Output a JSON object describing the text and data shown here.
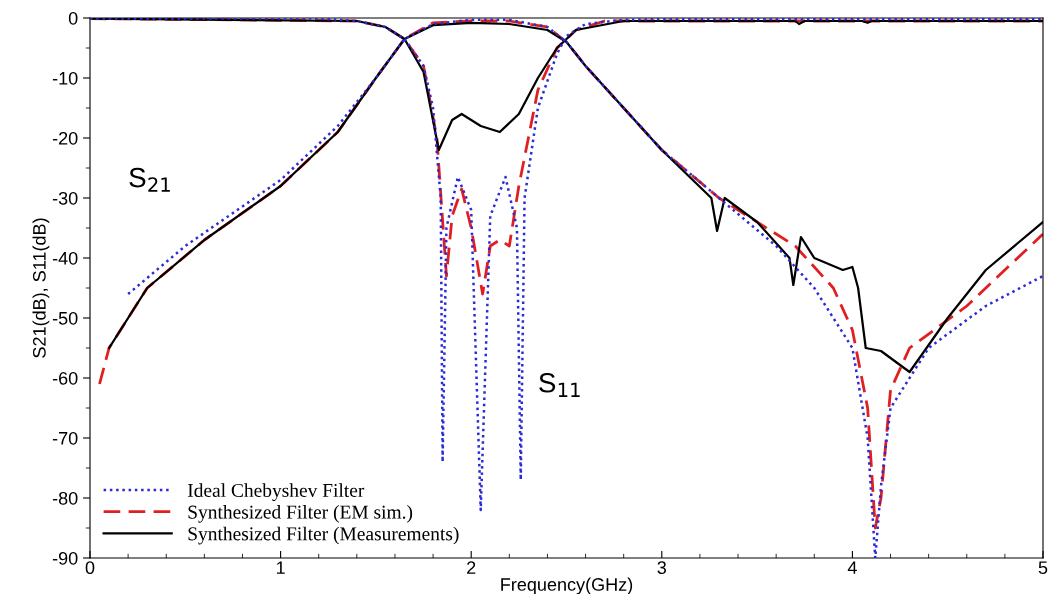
{
  "chart_data": {
    "type": "line",
    "xlabel": "Frequency(GHz)",
    "ylabel": "S21(dB), S11(dB)",
    "xlim": [
      0,
      5
    ],
    "ylim": [
      -90,
      0
    ],
    "xticks": [
      0,
      1,
      2,
      3,
      4,
      5
    ],
    "yticks": [
      -90,
      -80,
      -70,
      -60,
      -50,
      -40,
      -30,
      -20,
      -10,
      0
    ],
    "grid": false,
    "legend": "bottom left",
    "marker": "none",
    "series": [
      {
        "name": "Ideal Chebyshev Filter",
        "color": "#2b2bd6",
        "line_style": "dotted",
        "x": [
          0.2,
          0.5,
          1.0,
          1.3,
          1.5,
          1.65,
          1.8,
          2.0,
          2.2,
          2.4,
          2.5,
          2.6,
          2.8,
          3.0,
          3.3,
          3.6,
          3.8,
          4.0,
          4.08,
          4.12,
          4.15,
          4.2,
          4.4,
          4.7,
          5.0
        ],
        "values": [
          -46,
          -38,
          -27,
          -18,
          -10,
          -3.5,
          -1,
          -0.3,
          -0.3,
          -1.5,
          -4,
          -8,
          -15,
          -22,
          -30,
          -38,
          -45,
          -55,
          -70,
          -90,
          -78,
          -65,
          -55,
          -48,
          -43
        ]
      },
      {
        "name": "Synthesized Filter (EM sim.)",
        "color": "#e02020",
        "line_style": "dashed",
        "x": [
          0.05,
          0.1,
          0.3,
          0.6,
          1.0,
          1.3,
          1.5,
          1.65,
          1.8,
          2.0,
          2.2,
          2.4,
          2.5,
          2.6,
          2.8,
          3.0,
          3.3,
          3.7,
          3.9,
          4.0,
          4.08,
          4.12,
          4.15,
          4.2,
          4.3,
          4.6,
          5.0
        ],
        "values": [
          -61,
          -55,
          -45,
          -37,
          -28,
          -19,
          -10,
          -3.5,
          -0.8,
          -0.5,
          -0.5,
          -1.5,
          -4,
          -8,
          -15,
          -22,
          -30,
          -38,
          -45,
          -52,
          -65,
          -85,
          -80,
          -62,
          -55,
          -48,
          -36
        ]
      },
      {
        "name": "Synthesized Filter (Measurements)",
        "color": "#000000",
        "line_style": "solid",
        "x": [
          0.1,
          0.3,
          0.6,
          1.0,
          1.3,
          1.5,
          1.65,
          1.8,
          2.0,
          2.2,
          2.4,
          2.5,
          2.6,
          2.8,
          3.0,
          3.26,
          3.29,
          3.33,
          3.5,
          3.67,
          3.69,
          3.73,
          3.8,
          3.95,
          4.0,
          4.03,
          4.07,
          4.15,
          4.3,
          4.5,
          4.7,
          5.0
        ],
        "values": [
          -55,
          -45,
          -37,
          -28,
          -19,
          -10,
          -3.5,
          -1.2,
          -0.8,
          -1,
          -2,
          -4,
          -8,
          -15,
          -22,
          -30,
          -35.5,
          -30,
          -34,
          -40,
          -44.5,
          -36.5,
          -40,
          -42,
          -41.5,
          -45,
          -55,
          -55.5,
          -59,
          -50,
          -42,
          -34
        ]
      },
      {
        "color": "#2b2bd6",
        "line_style": "dotted",
        "x": [
          0,
          1.2,
          1.4,
          1.55,
          1.65,
          1.75,
          1.8,
          1.84,
          1.85,
          1.87,
          1.93,
          2.0,
          2.05,
          2.1,
          2.18,
          2.24,
          2.26,
          2.28,
          2.35,
          2.45,
          2.5,
          2.6,
          2.8,
          3.0,
          5.0
        ],
        "values": [
          -0.1,
          -0.1,
          -0.5,
          -1.5,
          -3.5,
          -8,
          -15,
          -30,
          -74,
          -35,
          -26.5,
          -32,
          -82,
          -33,
          -26.5,
          -35,
          -77,
          -30,
          -15,
          -6,
          -3,
          -1,
          -0.3,
          -0.2,
          -0.2
        ]
      },
      {
        "color": "#e02020",
        "line_style": "dashed",
        "x": [
          0,
          1.4,
          1.55,
          1.65,
          1.75,
          1.82,
          1.87,
          1.9,
          1.95,
          2.0,
          2.06,
          2.1,
          2.15,
          2.2,
          2.25,
          2.35,
          2.45,
          2.55,
          2.7,
          5.0
        ],
        "values": [
          -0.1,
          -0.5,
          -1.5,
          -3.5,
          -8,
          -20,
          -43,
          -33,
          -28.5,
          -35,
          -46,
          -38,
          -37,
          -38,
          -28,
          -12,
          -5,
          -2,
          -0.5,
          -0.5
        ]
      },
      {
        "color": "#000000",
        "line_style": "solid",
        "x": [
          0,
          1.4,
          1.55,
          1.65,
          1.75,
          1.83,
          1.9,
          1.95,
          2.05,
          2.15,
          2.25,
          2.35,
          2.45,
          2.55,
          2.8,
          3.7,
          3.72,
          3.75,
          4.05,
          4.08,
          4.1,
          5.0
        ],
        "values": [
          -0.1,
          -0.5,
          -1.5,
          -3.5,
          -9,
          -22,
          -17,
          -16,
          -18,
          -19,
          -16,
          -10,
          -5,
          -2,
          -0.5,
          -0.5,
          -1,
          -0.5,
          -0.5,
          -0.8,
          -0.5,
          -0.5
        ]
      }
    ],
    "annotations": [
      "S$_{21}$",
      "S$_{11}$"
    ]
  }
}
